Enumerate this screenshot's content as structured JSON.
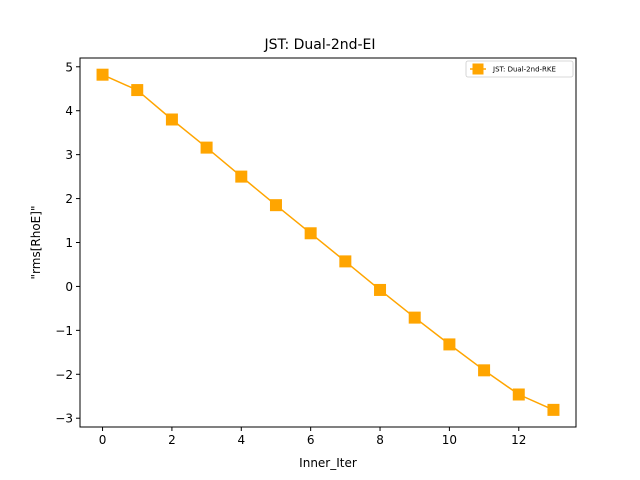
{
  "chart_data": {
    "type": "line",
    "title": "JST: Dual-2nd-EI",
    "xlabel": "Inner_Iter",
    "ylabel": "\"rms[RhoE]\"",
    "xlim": [
      -0.65,
      13.65
    ],
    "ylim": [
      -3.2,
      5.2
    ],
    "xticks": [
      0,
      2,
      4,
      6,
      8,
      10,
      12
    ],
    "yticks": [
      -3,
      -2,
      -1,
      0,
      1,
      2,
      3,
      4,
      5
    ],
    "ytick_labels": [
      "−3",
      "−2",
      "−1",
      "0",
      "1",
      "2",
      "3",
      "4",
      "5"
    ],
    "grid": false,
    "legend_position": "top-right",
    "series": [
      {
        "name": "JST: Dual-2nd-RKE",
        "color": "#FFA500",
        "marker": "square",
        "x": [
          0,
          1,
          2,
          3,
          4,
          5,
          6,
          7,
          8,
          9,
          10,
          11,
          12,
          13
        ],
        "values": [
          4.82,
          4.47,
          3.8,
          3.16,
          2.5,
          1.85,
          1.21,
          0.57,
          -0.08,
          -0.71,
          -1.32,
          -1.91,
          -2.46,
          -2.81
        ]
      }
    ]
  }
}
